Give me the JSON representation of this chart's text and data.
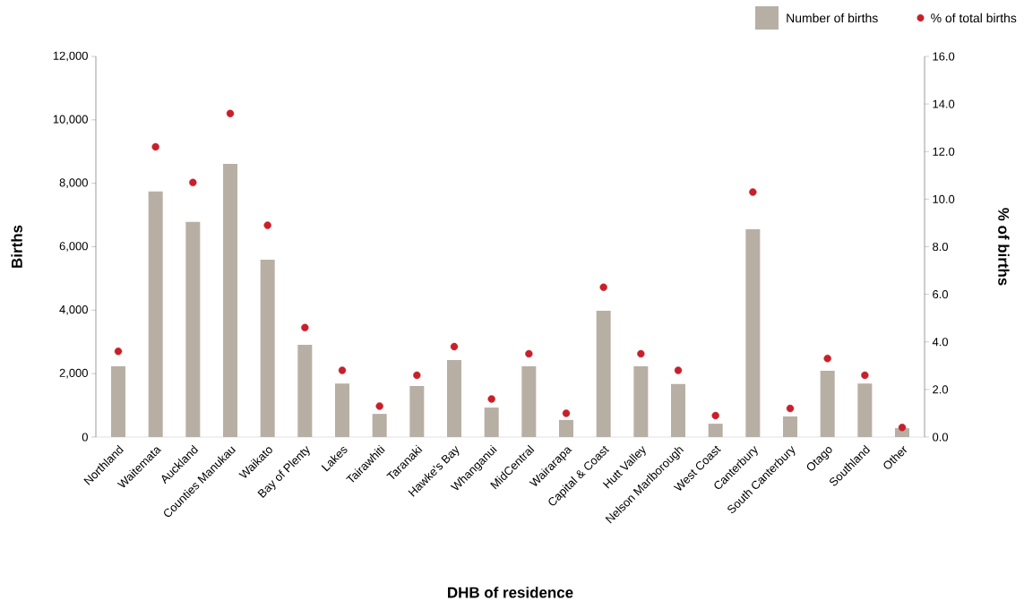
{
  "chart_data": {
    "type": "bar",
    "xlabel": "DHB of residence",
    "ylabel": "Births",
    "y2label": "% of births",
    "categories": [
      "Northland",
      "Waitemata",
      "Auckland",
      "Counties Manukau",
      "Waikato",
      "Bay of Plenty",
      "Lakes",
      "Tairawhiti",
      "Taranaki",
      "Hawke's Bay",
      "Whanganui",
      "MidCentral",
      "Wairarapa",
      "Capital & Coast",
      "Hutt Valley",
      "Nelson Marlborough",
      "West Coast",
      "Canterbury",
      "South Canterbury",
      "Otago",
      "Southland",
      "Other"
    ],
    "series": [
      {
        "name": "Number of births",
        "color": "#b8afa4",
        "values": [
          2230,
          7740,
          6780,
          8610,
          5590,
          2910,
          1690,
          730,
          1610,
          2430,
          930,
          2230,
          540,
          3980,
          2230,
          1670,
          420,
          6550,
          650,
          2090,
          1690,
          280
        ]
      },
      {
        "name": "% of total births",
        "type": "scatter",
        "axis": "y2",
        "color": "#c8202b",
        "values": [
          3.6,
          12.2,
          10.7,
          13.6,
          8.9,
          4.6,
          2.8,
          1.3,
          2.6,
          3.8,
          1.6,
          3.5,
          1.0,
          6.3,
          3.5,
          2.8,
          0.9,
          10.3,
          1.2,
          3.3,
          2.6,
          0.4
        ]
      }
    ],
    "ylim": [
      0,
      12000
    ],
    "yticks": [
      {
        "value": 0,
        "label": "0"
      },
      {
        "value": 2000,
        "label": "2,000"
      },
      {
        "value": 4000,
        "label": "4,000"
      },
      {
        "value": 6000,
        "label": "6,000"
      },
      {
        "value": 8000,
        "label": "8,000"
      },
      {
        "value": 10000,
        "label": "10,000"
      },
      {
        "value": 12000,
        "label": "12,000"
      }
    ],
    "y2lim": [
      0,
      16
    ],
    "y2ticks": [
      {
        "value": 0,
        "label": "0.0"
      },
      {
        "value": 2,
        "label": "2.0"
      },
      {
        "value": 4,
        "label": "4.0"
      },
      {
        "value": 6,
        "label": "6.0"
      },
      {
        "value": 8,
        "label": "8.0"
      },
      {
        "value": 10,
        "label": "10.0"
      },
      {
        "value": 12,
        "label": "12.0"
      },
      {
        "value": 14,
        "label": "14.0"
      },
      {
        "value": 16,
        "label": "16.0"
      }
    ],
    "legend": "top right",
    "marker": "circle"
  }
}
